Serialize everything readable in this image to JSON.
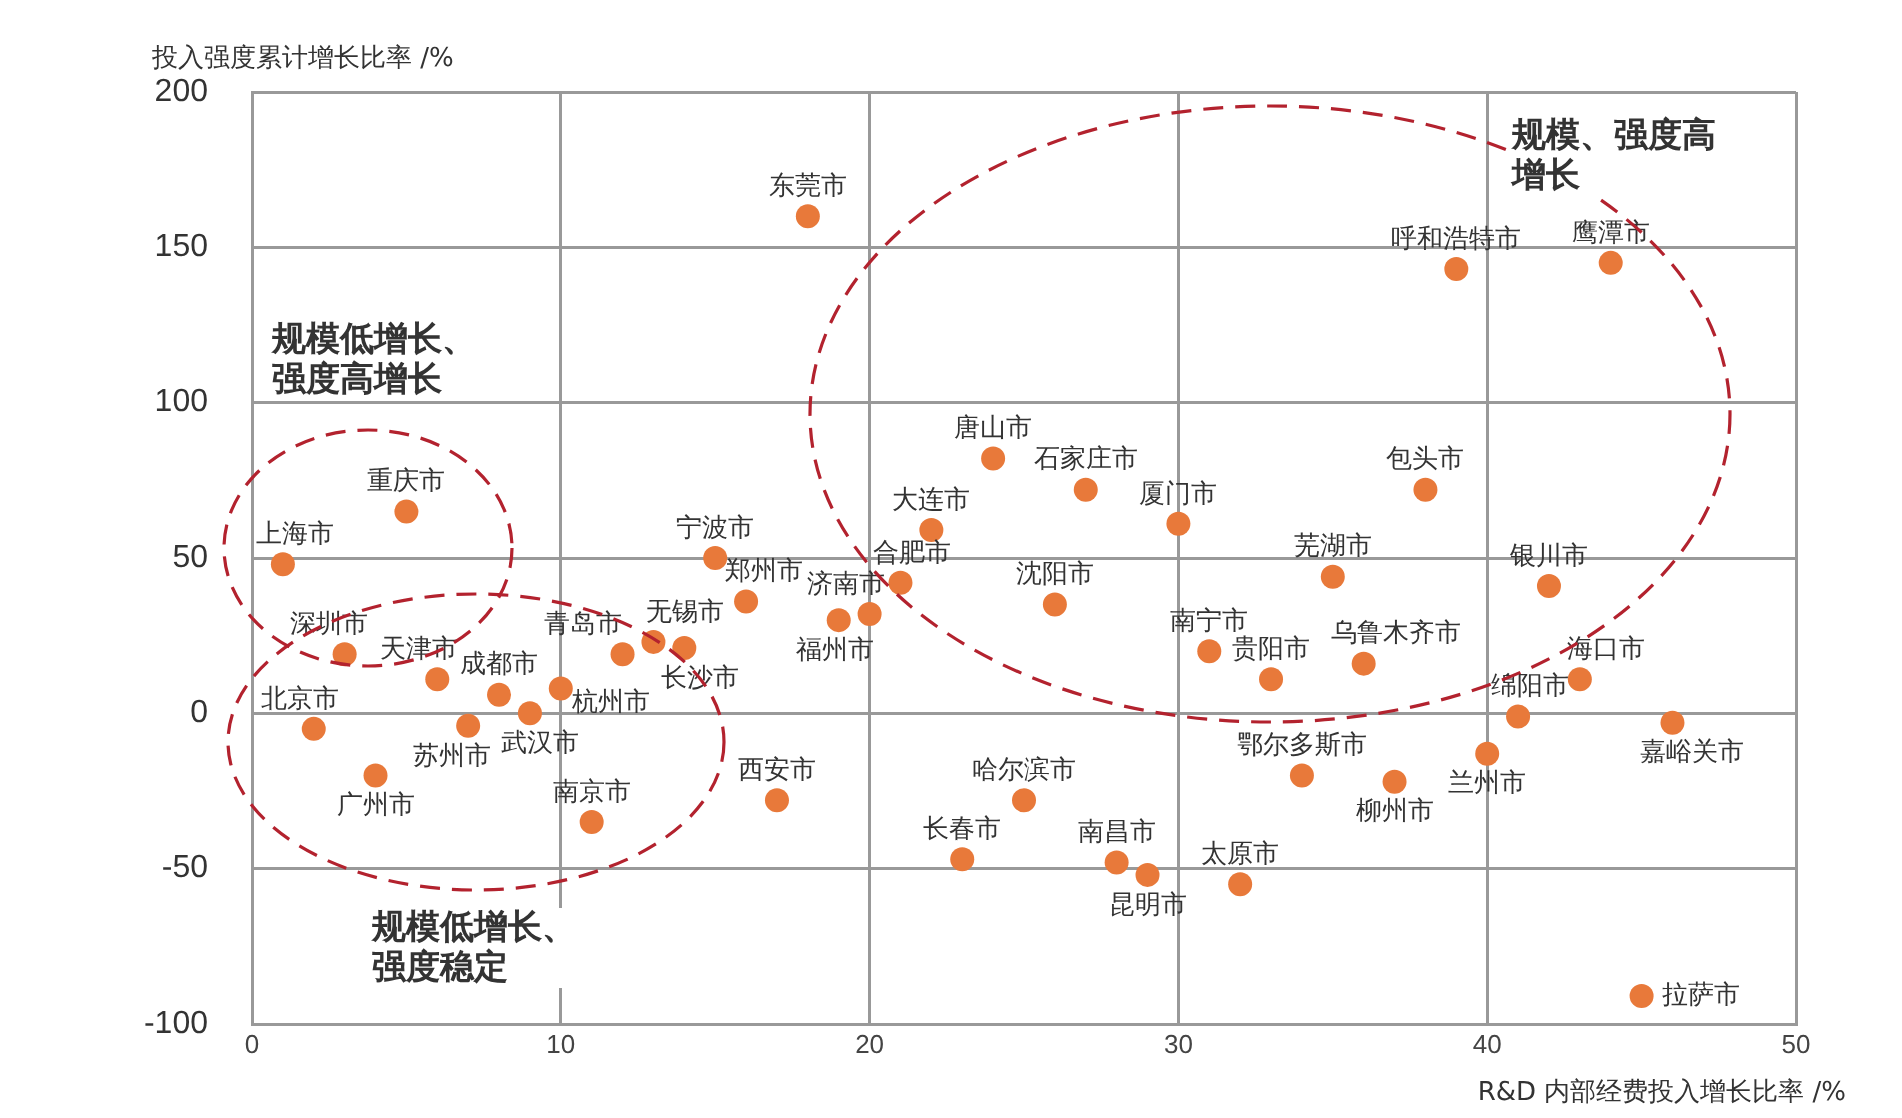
{
  "chart_data": {
    "type": "scatter",
    "xlabel": "R&D 内部经费投入增长比率 /%",
    "ylabel": "投入强度累计增长比率 /%",
    "xlim": [
      0,
      50
    ],
    "xticks": [
      0,
      10,
      20,
      30,
      40,
      50
    ],
    "ylim": [
      -100,
      200
    ],
    "yticks": [
      -100,
      -50,
      0,
      50,
      100,
      150,
      200
    ],
    "grid": true,
    "marker": "circle",
    "series": [
      {
        "color": "#e8793a",
        "x": [
          1,
          5,
          18,
          15,
          16,
          3,
          6,
          8,
          7,
          9,
          10,
          2,
          4,
          11,
          12,
          13,
          14,
          17,
          19,
          20,
          21,
          22,
          24,
          27,
          30,
          26,
          35,
          31,
          33,
          36,
          25,
          23,
          28,
          29,
          32,
          34,
          37,
          39,
          44,
          38,
          42,
          43,
          41,
          40,
          46,
          45
        ],
        "values": [
          48,
          65,
          160,
          50,
          36,
          19,
          11,
          6,
          -4,
          0,
          8,
          -5,
          -20,
          -35,
          19,
          23,
          21,
          -28,
          30,
          32,
          42,
          59,
          82,
          72,
          61,
          35,
          44,
          20,
          11,
          16,
          -28,
          -47,
          -48,
          -52,
          -55,
          -20,
          -22,
          143,
          145,
          72,
          41,
          11,
          -1,
          -13,
          -3,
          -91
        ]
      }
    ],
    "annotations": [
      "规模低增长、强度高增长",
      "规模、强度高增长",
      "规模低增长、强度稳定",
      {
        "text": "上海市",
        "x": 1,
        "y": 48
      },
      {
        "text": "重庆市",
        "x": 5,
        "y": 65
      },
      {
        "text": "东莞市",
        "x": 18,
        "y": 160
      },
      {
        "text": "宁波市",
        "x": 15,
        "y": 50
      },
      {
        "text": "郑州市",
        "x": 16,
        "y": 36
      },
      {
        "text": "深圳市",
        "x": 3,
        "y": 19
      },
      {
        "text": "天津市",
        "x": 6,
        "y": 11
      },
      {
        "text": "成都市",
        "x": 8,
        "y": 6
      },
      {
        "text": "苏州市",
        "x": 7,
        "y": -4
      },
      {
        "text": "武汉市",
        "x": 9,
        "y": 0
      },
      {
        "text": "杭州市",
        "x": 10,
        "y": 8
      },
      {
        "text": "北京市",
        "x": 2,
        "y": -5
      },
      {
        "text": "广州市",
        "x": 4,
        "y": -20
      },
      {
        "text": "南京市",
        "x": 11,
        "y": -35
      },
      {
        "text": "青岛市",
        "x": 12,
        "y": 19
      },
      {
        "text": "无锡市",
        "x": 13,
        "y": 23
      },
      {
        "text": "长沙市",
        "x": 14,
        "y": 21
      },
      {
        "text": "西安市",
        "x": 17,
        "y": -28
      },
      {
        "text": "福州市",
        "x": 19,
        "y": 30
      },
      {
        "text": "济南市",
        "x": 20,
        "y": 32
      },
      {
        "text": "合肥市",
        "x": 21,
        "y": 42
      },
      {
        "text": "大连市",
        "x": 22,
        "y": 59
      },
      {
        "text": "唐山市",
        "x": 24,
        "y": 82
      },
      {
        "text": "石家庄市",
        "x": 27,
        "y": 72
      },
      {
        "text": "厦门市",
        "x": 30,
        "y": 61
      },
      {
        "text": "沈阳市",
        "x": 26,
        "y": 35
      },
      {
        "text": "芜湖市",
        "x": 35,
        "y": 44
      },
      {
        "text": "南宁市",
        "x": 31,
        "y": 20
      },
      {
        "text": "贵阳市",
        "x": 33,
        "y": 11
      },
      {
        "text": "乌鲁木齐市",
        "x": 36,
        "y": 16
      },
      {
        "text": "哈尔滨市",
        "x": 25,
        "y": -28
      },
      {
        "text": "长春市",
        "x": 23,
        "y": -47
      },
      {
        "text": "南昌市",
        "x": 28,
        "y": -48
      },
      {
        "text": "昆明市",
        "x": 29,
        "y": -52
      },
      {
        "text": "太原市",
        "x": 32,
        "y": -55
      },
      {
        "text": "鄂尔多斯市",
        "x": 34,
        "y": -20
      },
      {
        "text": "柳州市",
        "x": 37,
        "y": -22
      },
      {
        "text": "呼和浩特市",
        "x": 39,
        "y": 143
      },
      {
        "text": "鹰潭市",
        "x": 44,
        "y": 145
      },
      {
        "text": "包头市",
        "x": 38,
        "y": 72
      },
      {
        "text": "银川市",
        "x": 42,
        "y": 41
      },
      {
        "text": "海口市",
        "x": 43,
        "y": 11
      },
      {
        "text": "绵阳市",
        "x": 41,
        "y": -1
      },
      {
        "text": "兰州市",
        "x": 40,
        "y": -13
      },
      {
        "text": "嘉峪关市",
        "x": 46,
        "y": -3
      },
      {
        "text": "拉萨市",
        "x": 45,
        "y": -91
      }
    ]
  }
}
